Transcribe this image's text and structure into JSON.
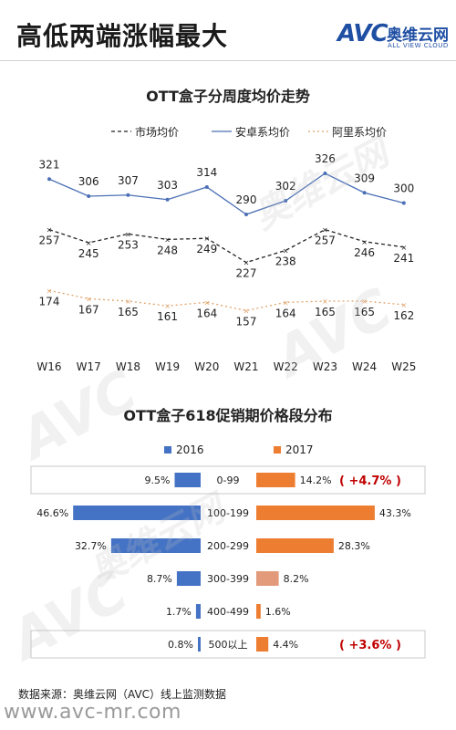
{
  "header": {
    "title": "高低两端涨幅最大",
    "logo_mark": "AVC",
    "logo_cn": "奥维云网",
    "logo_en": "ALL VIEW CLOUD"
  },
  "watermark": {
    "mark": "AVC",
    "cn": "奥维云网",
    "en": "ALL VIEW CLOUD"
  },
  "footer": {
    "source": "数据来源：奥维云网（AVC）线上监测数据",
    "url": "www.avc-mr.com"
  },
  "colors": {
    "market": "#222222",
    "jd": "#4a6fb5",
    "ali": "#e0a36a",
    "bar2016": "#4472c4",
    "bar2017": "#ed7d31",
    "bar2017_light": "#e39a7a",
    "highlight": "#c00000"
  },
  "chart_data": [
    {
      "type": "line",
      "title": "OTT盒子分周度均价走势",
      "categories": [
        "W16",
        "W17",
        "W18",
        "W19",
        "W20",
        "W21",
        "W22",
        "W23",
        "W24",
        "W25"
      ],
      "legend_position": "top",
      "series": [
        {
          "name": "市场均价",
          "style": "dashed",
          "values": [
            257,
            245,
            253,
            248,
            249,
            227,
            238,
            257,
            246,
            241
          ]
        },
        {
          "name": "安卓系均价",
          "style": "solid",
          "values": [
            321,
            306,
            307,
            303,
            314,
            290,
            302,
            326,
            309,
            300
          ]
        },
        {
          "name": "阿里系均价",
          "style": "dotted",
          "values": [
            174,
            167,
            165,
            161,
            164,
            157,
            164,
            165,
            165,
            162
          ]
        }
      ]
    },
    {
      "type": "bar",
      "orientation": "horizontal-butterfly",
      "title": "OTT盒子618促销期价格段分布",
      "legend_position": "top",
      "categories": [
        "0-99",
        "100-199",
        "200-299",
        "300-399",
        "400-499",
        "500以上"
      ],
      "series": [
        {
          "name": "2016",
          "values": [
            9.5,
            46.6,
            32.7,
            8.7,
            1.7,
            0.8
          ]
        },
        {
          "name": "2017",
          "values": [
            14.2,
            43.3,
            28.3,
            8.2,
            1.6,
            4.4
          ]
        }
      ],
      "value_labels_2016": [
        "9.5%",
        "46.6%",
        "32.7%",
        "8.7%",
        "1.7%",
        "0.8%"
      ],
      "value_labels_2017": [
        "14.2%",
        "43.3%",
        "28.3%",
        "8.2%",
        "1.6%",
        "4.4%"
      ],
      "highlights": [
        {
          "category": "0-99",
          "delta": "+4.7",
          "unit": "%"
        },
        {
          "category": "500以上",
          "delta": "+3.6",
          "unit": "%"
        }
      ]
    }
  ]
}
